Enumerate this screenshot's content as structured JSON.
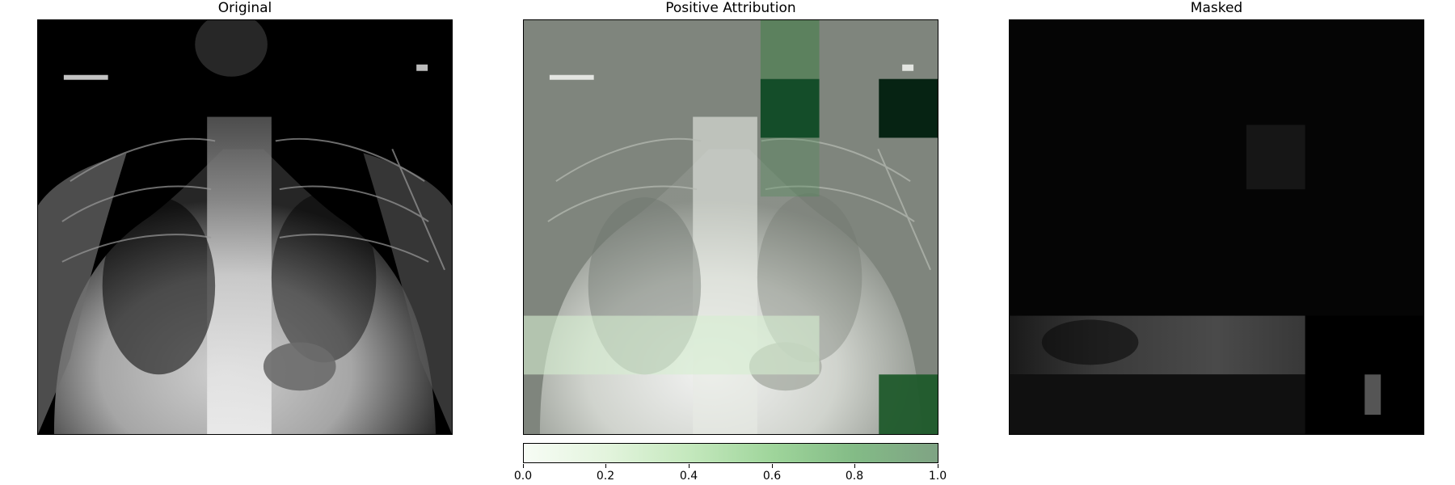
{
  "panels": {
    "original": {
      "title": "Original"
    },
    "attribution": {
      "title": "Positive Attribution"
    },
    "masked": {
      "title": "Masked"
    }
  },
  "colorbar": {
    "ticks": [
      "0.0",
      "0.2",
      "0.4",
      "0.6",
      "0.8",
      "1.0"
    ],
    "colormap": [
      "#f7fcf5",
      "#e3f4dd",
      "#c4e8bd",
      "#9fd59b",
      "#83bb86",
      "#7fa384"
    ]
  },
  "colors": {
    "xray_background": "#000000",
    "overlay_gray": "#7f857d",
    "strong_green": "#0f4a25",
    "darkest_green": "#02200f"
  }
}
